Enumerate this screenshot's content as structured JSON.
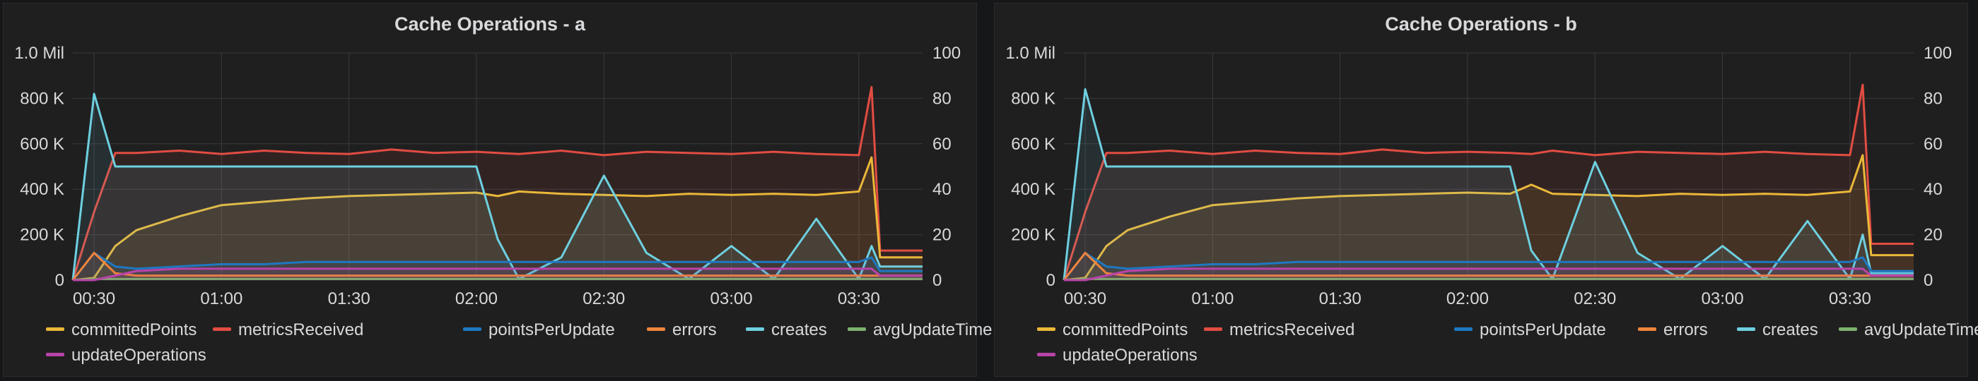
{
  "panels": [
    {
      "id": "a",
      "title": "Cache Operations - a"
    },
    {
      "id": "b",
      "title": "Cache Operations - b"
    }
  ],
  "legend": [
    {
      "key": "committedPoints",
      "label": "committedPoints",
      "color": "#eab839"
    },
    {
      "key": "metricsReceived",
      "label": "metricsReceived",
      "color": "#e24d42"
    },
    {
      "key": "pointsPerUpdate",
      "label": "pointsPerUpdate",
      "color": "#1f78c1"
    },
    {
      "key": "errors",
      "label": "errors",
      "color": "#ef843c"
    },
    {
      "key": "creates",
      "label": "creates",
      "color": "#6ed0e0"
    },
    {
      "key": "avgUpdateTime",
      "label": "avgUpdateTime",
      "color": "#7eb26d"
    },
    {
      "key": "updateOperations",
      "label": "updateOperations",
      "color": "#ba43a9"
    }
  ],
  "chart_data": [
    {
      "type": "line",
      "title": "Cache Operations - a",
      "x_ticks": [
        "00:30",
        "01:00",
        "01:30",
        "02:00",
        "02:30",
        "03:00",
        "03:30"
      ],
      "x": [
        "00:25",
        "00:30",
        "00:35",
        "00:40",
        "00:50",
        "01:00",
        "01:10",
        "01:20",
        "01:30",
        "01:40",
        "01:50",
        "02:00",
        "02:05",
        "02:10",
        "02:20",
        "02:30",
        "02:40",
        "02:50",
        "03:00",
        "03:10",
        "03:20",
        "03:30",
        "03:33",
        "03:35",
        "03:40",
        "03:45"
      ],
      "y_left_ticks": [
        "0",
        "200 K",
        "400 K",
        "600 K",
        "800 K",
        "1.0 Mil"
      ],
      "y_left_range": [
        0,
        1000000
      ],
      "y_right_ticks": [
        "0",
        "20",
        "40",
        "60",
        "80",
        "100"
      ],
      "y_right_range": [
        0,
        100
      ],
      "grid": true,
      "legend_position": "bottom",
      "series": [
        {
          "name": "metricsReceived",
          "axis": "left",
          "values": [
            0,
            300000,
            560000,
            560000,
            570000,
            555000,
            570000,
            560000,
            555000,
            575000,
            560000,
            565000,
            560000,
            555000,
            570000,
            550000,
            565000,
            560000,
            555000,
            565000,
            555000,
            550000,
            850000,
            130000,
            130000,
            130000
          ]
        },
        {
          "name": "committedPoints",
          "axis": "left",
          "values": [
            0,
            10000,
            150000,
            220000,
            280000,
            330000,
            345000,
            360000,
            370000,
            375000,
            380000,
            385000,
            370000,
            390000,
            380000,
            375000,
            370000,
            380000,
            375000,
            380000,
            375000,
            390000,
            540000,
            100000,
            100000,
            100000
          ]
        },
        {
          "name": "creates",
          "axis": "left",
          "values": [
            0,
            820000,
            500000,
            500000,
            500000,
            500000,
            500000,
            500000,
            500000,
            500000,
            500000,
            500000,
            180000,
            5000,
            100000,
            460000,
            120000,
            5000,
            150000,
            5000,
            270000,
            5000,
            150000,
            60000,
            60000,
            60000
          ]
        },
        {
          "name": "pointsPerUpdate",
          "axis": "right",
          "values": [
            0,
            12,
            6,
            5,
            6,
            7,
            7,
            8,
            8,
            8,
            8,
            8,
            8,
            8,
            8,
            8,
            8,
            8,
            8,
            8,
            8,
            8,
            10,
            4,
            4,
            4
          ]
        },
        {
          "name": "errors",
          "axis": "left",
          "values": [
            0,
            120000,
            30000,
            20000,
            20000,
            20000,
            20000,
            20000,
            20000,
            20000,
            20000,
            20000,
            20000,
            20000,
            20000,
            20000,
            20000,
            20000,
            20000,
            20000,
            20000,
            20000,
            20000,
            20000,
            20000,
            20000
          ]
        },
        {
          "name": "avgUpdateTime",
          "axis": "right",
          "values": [
            0,
            0.5,
            0.5,
            0.5,
            0.5,
            0.5,
            0.5,
            0.5,
            0.5,
            0.5,
            0.5,
            0.5,
            0.5,
            0.5,
            0.5,
            0.5,
            0.5,
            0.5,
            0.5,
            0.5,
            0.5,
            0.5,
            0.5,
            0.5,
            0.5,
            0.5
          ]
        },
        {
          "name": "updateOperations",
          "axis": "right",
          "values": [
            0,
            0,
            2,
            4,
            5,
            5,
            5,
            5,
            5,
            5,
            5,
            5,
            5,
            5,
            5,
            5,
            5,
            5,
            5,
            5,
            5,
            5,
            5,
            2,
            2,
            2
          ]
        }
      ]
    },
    {
      "type": "line",
      "title": "Cache Operations - b",
      "x_ticks": [
        "00:30",
        "01:00",
        "01:30",
        "02:00",
        "02:30",
        "03:00",
        "03:30"
      ],
      "x": [
        "00:25",
        "00:30",
        "00:35",
        "00:40",
        "00:50",
        "01:00",
        "01:10",
        "01:20",
        "01:30",
        "01:40",
        "01:50",
        "02:00",
        "02:10",
        "02:15",
        "02:20",
        "02:30",
        "02:40",
        "02:50",
        "03:00",
        "03:10",
        "03:20",
        "03:30",
        "03:33",
        "03:35",
        "03:40",
        "03:45"
      ],
      "y_left_ticks": [
        "0",
        "200 K",
        "400 K",
        "600 K",
        "800 K",
        "1.0 Mil"
      ],
      "y_left_range": [
        0,
        1000000
      ],
      "y_right_ticks": [
        "0",
        "20",
        "40",
        "60",
        "80",
        "100"
      ],
      "y_right_range": [
        0,
        100
      ],
      "grid": true,
      "legend_position": "bottom",
      "series": [
        {
          "name": "metricsReceived",
          "axis": "left",
          "values": [
            0,
            300000,
            560000,
            560000,
            570000,
            555000,
            570000,
            560000,
            555000,
            575000,
            560000,
            565000,
            560000,
            555000,
            570000,
            550000,
            565000,
            560000,
            555000,
            565000,
            555000,
            550000,
            860000,
            160000,
            160000,
            160000
          ]
        },
        {
          "name": "committedPoints",
          "axis": "left",
          "values": [
            0,
            10000,
            150000,
            220000,
            280000,
            330000,
            345000,
            360000,
            370000,
            375000,
            380000,
            385000,
            380000,
            420000,
            380000,
            375000,
            370000,
            380000,
            375000,
            380000,
            375000,
            390000,
            550000,
            110000,
            110000,
            110000
          ]
        },
        {
          "name": "creates",
          "axis": "left",
          "values": [
            0,
            840000,
            500000,
            500000,
            500000,
            500000,
            500000,
            500000,
            500000,
            500000,
            500000,
            500000,
            500000,
            130000,
            5000,
            520000,
            120000,
            5000,
            150000,
            5000,
            260000,
            5000,
            200000,
            30000,
            30000,
            30000
          ]
        },
        {
          "name": "pointsPerUpdate",
          "axis": "right",
          "values": [
            0,
            12,
            6,
            5,
            6,
            7,
            7,
            8,
            8,
            8,
            8,
            8,
            8,
            8,
            8,
            8,
            8,
            8,
            8,
            8,
            8,
            8,
            10,
            4,
            4,
            4
          ]
        },
        {
          "name": "errors",
          "axis": "left",
          "values": [
            0,
            120000,
            30000,
            20000,
            20000,
            20000,
            20000,
            20000,
            20000,
            20000,
            20000,
            20000,
            20000,
            20000,
            20000,
            20000,
            20000,
            20000,
            20000,
            20000,
            20000,
            20000,
            20000,
            20000,
            20000,
            20000
          ]
        },
        {
          "name": "avgUpdateTime",
          "axis": "right",
          "values": [
            0,
            0.5,
            0.5,
            0.5,
            0.5,
            0.5,
            0.5,
            0.5,
            0.5,
            0.5,
            0.5,
            0.5,
            0.5,
            0.5,
            0.5,
            0.5,
            0.5,
            0.5,
            0.5,
            0.5,
            0.5,
            0.5,
            0.5,
            0.5,
            0.5,
            0.5
          ]
        },
        {
          "name": "updateOperations",
          "axis": "right",
          "values": [
            0,
            0,
            2,
            4,
            5,
            5,
            5,
            5,
            5,
            5,
            5,
            5,
            5,
            5,
            5,
            5,
            5,
            5,
            5,
            5,
            5,
            5,
            5,
            2,
            2,
            2
          ]
        }
      ]
    }
  ]
}
